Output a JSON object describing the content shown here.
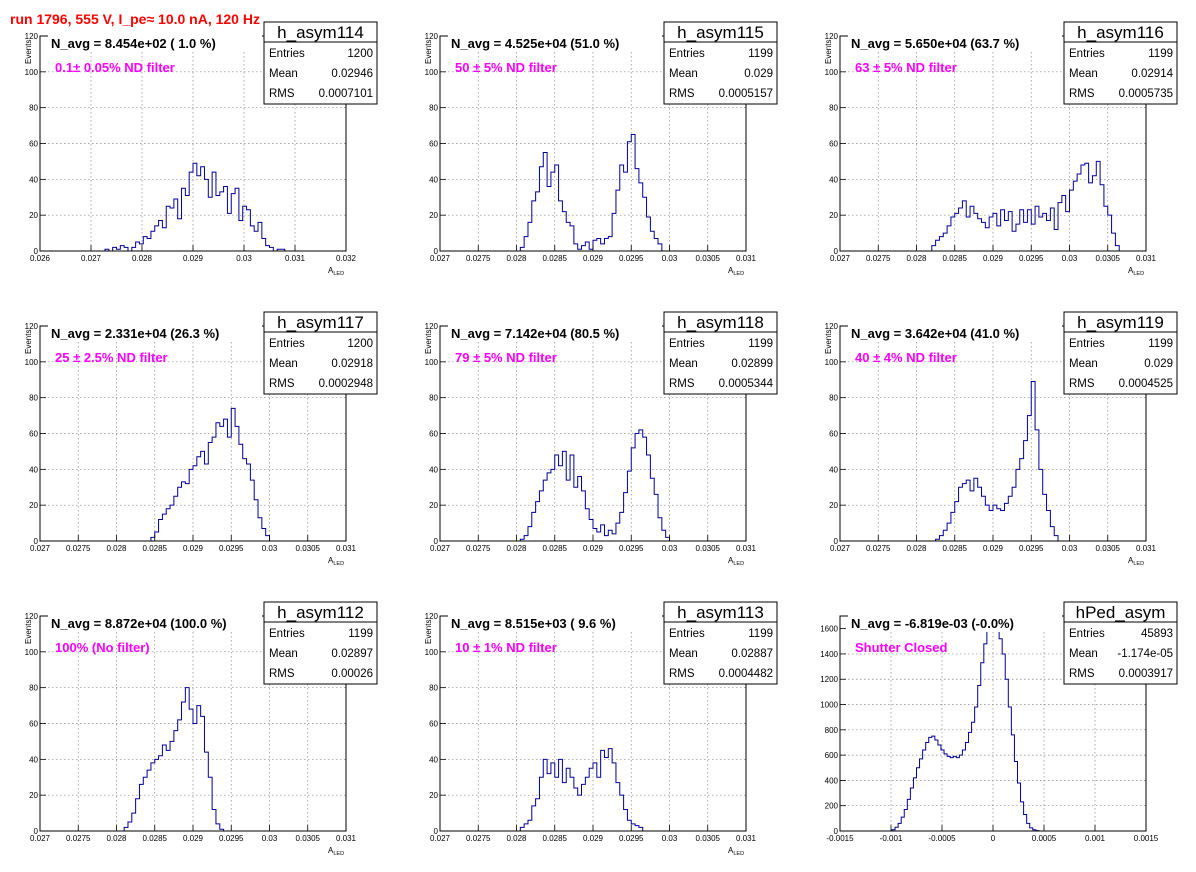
{
  "header": {
    "title": "run 1796,   555 V, I_pe≈ 10.0 nA, 120 Hz"
  },
  "colors": {
    "title": "#ff0000",
    "histogram": "#000099",
    "filter_text": "#ff00ff",
    "grid": "#888888"
  },
  "chart_data": [
    {
      "type": "bar",
      "name": "h_asym114",
      "stats": {
        "entries_label": "Entries",
        "entries": "1200",
        "mean_label": "Mean",
        "mean": "0.02946",
        "rms_label": "RMS",
        "rms": "0.0007101"
      },
      "navg": "N_avg = 8.454e+02 ( 1.0 %)",
      "filter": "0.1± 0.05% ND filter",
      "xlabel": "A",
      "xlabel_sub": "LED",
      "ylabel": "Events",
      "xlim": [
        0.026,
        0.032
      ],
      "ylim": [
        0,
        120
      ],
      "xticks": [
        "0.026",
        "0.027",
        "0.028",
        "0.029",
        "0.03",
        "0.031",
        "0.032"
      ],
      "yticks": [
        "0",
        "20",
        "40",
        "60",
        "80",
        "100",
        "120"
      ],
      "bins": 80,
      "grid": true,
      "values": [
        0,
        0,
        0,
        0,
        0,
        0,
        0,
        0,
        0,
        0,
        0,
        0,
        0,
        0,
        0,
        0,
        0,
        1,
        0,
        2,
        1,
        3,
        2,
        0,
        2,
        5,
        4,
        8,
        7,
        11,
        14,
        17,
        13,
        25,
        24,
        29,
        18,
        35,
        31,
        44,
        49,
        42,
        47,
        40,
        30,
        44,
        31,
        33,
        36,
        21,
        32,
        35,
        17,
        25,
        23,
        14,
        11,
        16,
        7,
        3,
        2,
        0,
        1,
        1,
        0,
        0,
        0,
        0,
        0,
        0,
        0,
        0,
        0,
        0,
        0,
        0,
        0,
        0,
        0,
        0
      ]
    },
    {
      "type": "bar",
      "name": "h_asym115",
      "stats": {
        "entries_label": "Entries",
        "entries": "1199",
        "mean_label": "Mean",
        "mean": "0.029",
        "rms_label": "RMS",
        "rms": "0.0005157"
      },
      "navg": "N_avg = 4.525e+04 (51.0 %)",
      "filter": "50 ± 5% ND filter",
      "xlabel": "A",
      "xlabel_sub": "LED",
      "ylabel": "Events",
      "xlim": [
        0.027,
        0.031
      ],
      "ylim": [
        0,
        120
      ],
      "xticks": [
        "0.027",
        "0.0275",
        "0.028",
        "0.0285",
        "0.029",
        "0.0295",
        "0.03",
        "0.0305",
        "0.031"
      ],
      "yticks": [
        "0",
        "20",
        "40",
        "60",
        "80",
        "100",
        "120"
      ],
      "bins": 80,
      "grid": true,
      "values": [
        0,
        0,
        0,
        0,
        0,
        0,
        0,
        0,
        0,
        0,
        0,
        0,
        0,
        0,
        0,
        0,
        0,
        0,
        0,
        0,
        0,
        2,
        8,
        16,
        28,
        33,
        47,
        55,
        36,
        44,
        48,
        28,
        22,
        16,
        14,
        4,
        1,
        3,
        5,
        1,
        6,
        7,
        4,
        7,
        8,
        21,
        34,
        48,
        44,
        61,
        65,
        46,
        38,
        30,
        19,
        11,
        7,
        4,
        0,
        0,
        0,
        0,
        0,
        0,
        0,
        0,
        0,
        0,
        0,
        0,
        0,
        0,
        0,
        0,
        0,
        0,
        0,
        0,
        0,
        0
      ]
    },
    {
      "type": "bar",
      "name": "h_asym116",
      "stats": {
        "entries_label": "Entries",
        "entries": "1199",
        "mean_label": "Mean",
        "mean": "0.02914",
        "rms_label": "RMS",
        "rms": "0.0005735"
      },
      "navg": "N_avg = 5.650e+04 (63.7 %)",
      "filter": "63 ± 5% ND filter",
      "xlabel": "A",
      "xlabel_sub": "LED",
      "ylabel": "Events",
      "xlim": [
        0.027,
        0.031
      ],
      "ylim": [
        0,
        120
      ],
      "xticks": [
        "0.027",
        "0.0275",
        "0.028",
        "0.0285",
        "0.029",
        "0.0295",
        "0.03",
        "0.0305",
        "0.031"
      ],
      "yticks": [
        "0",
        "20",
        "40",
        "60",
        "80",
        "100",
        "120"
      ],
      "bins": 80,
      "grid": true,
      "values": [
        0,
        0,
        0,
        0,
        0,
        0,
        0,
        0,
        0,
        0,
        0,
        0,
        0,
        0,
        0,
        0,
        0,
        0,
        0,
        0,
        0,
        0,
        0,
        0,
        3,
        6,
        8,
        10,
        14,
        19,
        21,
        24,
        28,
        19,
        25,
        21,
        18,
        16,
        13,
        19,
        21,
        14,
        23,
        17,
        22,
        11,
        15,
        23,
        16,
        23,
        15,
        25,
        19,
        21,
        17,
        24,
        12,
        27,
        31,
        22,
        34,
        39,
        43,
        48,
        49,
        38,
        42,
        50,
        37,
        25,
        20,
        10,
        3,
        0,
        0,
        0,
        0,
        0,
        0,
        0
      ]
    },
    {
      "type": "bar",
      "name": "h_asym117",
      "stats": {
        "entries_label": "Entries",
        "entries": "1200",
        "mean_label": "Mean",
        "mean": "0.02918",
        "rms_label": "RMS",
        "rms": "0.0002948"
      },
      "navg": "N_avg = 2.331e+04 (26.3 %)",
      "filter": "25 ± 2.5% ND filter",
      "xlabel": "A",
      "xlabel_sub": "LED",
      "ylabel": "Events",
      "xlim": [
        0.027,
        0.031
      ],
      "ylim": [
        0,
        120
      ],
      "xticks": [
        "0.027",
        "0.0275",
        "0.028",
        "0.0285",
        "0.029",
        "0.0295",
        "0.03",
        "0.0305",
        "0.031"
      ],
      "yticks": [
        "0",
        "20",
        "40",
        "60",
        "80",
        "100",
        "120"
      ],
      "bins": 80,
      "grid": true,
      "values": [
        0,
        0,
        0,
        0,
        0,
        0,
        0,
        0,
        0,
        0,
        0,
        0,
        0,
        0,
        0,
        0,
        0,
        0,
        0,
        0,
        0,
        0,
        0,
        0,
        0,
        0,
        0,
        0,
        0,
        2,
        5,
        12,
        15,
        18,
        20,
        25,
        30,
        33,
        32,
        40,
        42,
        47,
        50,
        43,
        55,
        58,
        66,
        64,
        68,
        58,
        74,
        64,
        54,
        46,
        43,
        34,
        23,
        13,
        7,
        3,
        0,
        0,
        0,
        0,
        0,
        0,
        0,
        0,
        0,
        0,
        0,
        0,
        0,
        0,
        0,
        0,
        0,
        0,
        0,
        0
      ]
    },
    {
      "type": "bar",
      "name": "h_asym118",
      "stats": {
        "entries_label": "Entries",
        "entries": "1199",
        "mean_label": "Mean",
        "mean": "0.02899",
        "rms_label": "RMS",
        "rms": "0.0005344"
      },
      "navg": "N_avg = 7.142e+04 (80.5 %)",
      "filter": "79 ± 5% ND filter",
      "xlabel": "A",
      "xlabel_sub": "LED",
      "ylabel": "Events",
      "xlim": [
        0.027,
        0.031
      ],
      "ylim": [
        0,
        120
      ],
      "xticks": [
        "0.027",
        "0.0275",
        "0.028",
        "0.0285",
        "0.029",
        "0.0295",
        "0.03",
        "0.0305",
        "0.031"
      ],
      "yticks": [
        "0",
        "20",
        "40",
        "60",
        "80",
        "100",
        "120"
      ],
      "bins": 80,
      "grid": true,
      "values": [
        0,
        0,
        0,
        0,
        0,
        0,
        0,
        0,
        0,
        0,
        0,
        0,
        0,
        0,
        0,
        0,
        0,
        0,
        0,
        0,
        0,
        1,
        3,
        8,
        16,
        22,
        28,
        34,
        38,
        40,
        48,
        42,
        50,
        34,
        48,
        30,
        36,
        28,
        18,
        12,
        7,
        5,
        9,
        3,
        6,
        4,
        10,
        16,
        27,
        39,
        52,
        60,
        62,
        58,
        48,
        35,
        26,
        13,
        6,
        2,
        0,
        0,
        0,
        0,
        0,
        0,
        0,
        0,
        0,
        0,
        0,
        0,
        0,
        0,
        0,
        0,
        0,
        0,
        0,
        0
      ]
    },
    {
      "type": "bar",
      "name": "h_asym119",
      "stats": {
        "entries_label": "Entries",
        "entries": "1199",
        "mean_label": "Mean",
        "mean": "0.029",
        "rms_label": "RMS",
        "rms": "0.0004525"
      },
      "navg": "N_avg = 3.642e+04 (41.0 %)",
      "filter": "40 ± 4% ND filter",
      "xlabel": "A",
      "xlabel_sub": "LED",
      "ylabel": "Events",
      "xlim": [
        0.027,
        0.031
      ],
      "ylim": [
        0,
        120
      ],
      "xticks": [
        "0.027",
        "0.0275",
        "0.028",
        "0.0285",
        "0.029",
        "0.0295",
        "0.03",
        "0.0305",
        "0.031"
      ],
      "yticks": [
        "0",
        "20",
        "40",
        "60",
        "80",
        "100",
        "120"
      ],
      "bins": 80,
      "grid": true,
      "values": [
        0,
        0,
        0,
        0,
        0,
        0,
        0,
        0,
        0,
        0,
        0,
        0,
        0,
        0,
        0,
        0,
        0,
        0,
        0,
        0,
        0,
        0,
        0,
        0,
        0,
        1,
        3,
        6,
        10,
        16,
        22,
        30,
        32,
        34,
        28,
        35,
        30,
        25,
        20,
        17,
        20,
        18,
        17,
        21,
        25,
        30,
        40,
        46,
        56,
        70,
        89,
        62,
        40,
        26,
        17,
        8,
        3,
        0,
        0,
        0,
        0,
        0,
        0,
        0,
        0,
        0,
        0,
        0,
        0,
        0,
        0,
        0,
        0,
        0,
        0,
        0,
        0,
        0,
        0,
        0
      ]
    },
    {
      "type": "bar",
      "name": "h_asym112",
      "stats": {
        "entries_label": "Entries",
        "entries": "1199",
        "mean_label": "Mean",
        "mean": "0.02897",
        "rms_label": "RMS",
        "rms": "0.00026"
      },
      "navg": "N_avg = 8.872e+04 (100.0 %)",
      "filter": "100% (No filter)",
      "xlabel": "A",
      "xlabel_sub": "LED",
      "ylabel": "Events",
      "xlim": [
        0.027,
        0.031
      ],
      "ylim": [
        0,
        120
      ],
      "xticks": [
        "0.027",
        "0.0275",
        "0.028",
        "0.0285",
        "0.029",
        "0.0295",
        "0.03",
        "0.0305",
        "0.031"
      ],
      "yticks": [
        "0",
        "20",
        "40",
        "60",
        "80",
        "100",
        "120"
      ],
      "bins": 80,
      "grid": true,
      "values": [
        0,
        0,
        0,
        0,
        0,
        0,
        0,
        0,
        0,
        0,
        0,
        0,
        0,
        0,
        0,
        0,
        0,
        0,
        0,
        0,
        0,
        0,
        2,
        5,
        10,
        18,
        26,
        30,
        34,
        38,
        40,
        42,
        48,
        45,
        50,
        56,
        62,
        72,
        80,
        68,
        60,
        70,
        64,
        44,
        30,
        12,
        4,
        1,
        0,
        0,
        0,
        0,
        0,
        0,
        0,
        0,
        0,
        0,
        0,
        0,
        0,
        0,
        0,
        0,
        0,
        0,
        0,
        0,
        0,
        0,
        0,
        0,
        0,
        0,
        0,
        0,
        0,
        0,
        0,
        0
      ]
    },
    {
      "type": "bar",
      "name": "h_asym113",
      "stats": {
        "entries_label": "Entries",
        "entries": "1199",
        "mean_label": "Mean",
        "mean": "0.02887",
        "rms_label": "RMS",
        "rms": "0.0004482"
      },
      "navg": "N_avg = 8.515e+03 ( 9.6 %)",
      "filter": "10 ± 1% ND filter",
      "xlabel": "A",
      "xlabel_sub": "LED",
      "ylabel": "Events",
      "xlim": [
        0.027,
        0.031
      ],
      "ylim": [
        0,
        120
      ],
      "xticks": [
        "0.027",
        "0.0275",
        "0.028",
        "0.0285",
        "0.029",
        "0.0295",
        "0.03",
        "0.0305",
        "0.031"
      ],
      "yticks": [
        "0",
        "20",
        "40",
        "60",
        "80",
        "100",
        "120"
      ],
      "bins": 80,
      "grid": true,
      "values": [
        0,
        0,
        0,
        0,
        0,
        0,
        0,
        0,
        0,
        0,
        0,
        0,
        0,
        0,
        0,
        0,
        0,
        0,
        0,
        0,
        0,
        2,
        4,
        6,
        14,
        18,
        30,
        40,
        32,
        38,
        30,
        40,
        27,
        35,
        30,
        24,
        20,
        26,
        30,
        35,
        38,
        30,
        45,
        41,
        46,
        38,
        27,
        20,
        12,
        6,
        4,
        3,
        2,
        0,
        0,
        0,
        0,
        0,
        0,
        0,
        0,
        0,
        0,
        0,
        0,
        0,
        0,
        0,
        0,
        0,
        0,
        0,
        0,
        0,
        0,
        0,
        0,
        0,
        0,
        0
      ]
    },
    {
      "type": "bar",
      "name": "hPed_asym",
      "stats": {
        "entries_label": "Entries",
        "entries": "45893",
        "mean_label": "Mean",
        "mean": "-1.174e-05",
        "rms_label": "RMS",
        "rms": "0.0003917"
      },
      "navg": "N_avg = -6.819e-03 (-0.0%)",
      "filter": "Shutter Closed",
      "xlabel": "",
      "xlabel_sub": "",
      "ylabel": "",
      "xlim": [
        -0.0015,
        0.0015
      ],
      "ylim": [
        0,
        1700
      ],
      "xticks": [
        "-0.0015",
        "-0.001",
        "-0.0005",
        "0",
        "0.0005",
        "0.001",
        "0.0015"
      ],
      "yticks": [
        "0",
        "200",
        "400",
        "600",
        "800",
        "1000",
        "1200",
        "1400",
        "1600"
      ],
      "bins": 100,
      "grid": true,
      "values": [
        0,
        0,
        0,
        0,
        0,
        0,
        0,
        0,
        0,
        0,
        0,
        0,
        0,
        0,
        0,
        0,
        0,
        10,
        30,
        60,
        110,
        170,
        250,
        340,
        420,
        500,
        570,
        640,
        700,
        740,
        750,
        720,
        680,
        640,
        610,
        590,
        580,
        590,
        580,
        600,
        640,
        700,
        780,
        860,
        980,
        1150,
        1330,
        1480,
        1580,
        1620,
        1630,
        1580,
        1520,
        1400,
        1200,
        980,
        760,
        550,
        380,
        230,
        130,
        60,
        25,
        10,
        3,
        0,
        0,
        0,
        0,
        0,
        0,
        0,
        0,
        0,
        0,
        0,
        0,
        0,
        0,
        0,
        0,
        0,
        0,
        0,
        0,
        0,
        0,
        0,
        0,
        0,
        0,
        0,
        0,
        0,
        0,
        0,
        0,
        0,
        0,
        0
      ]
    }
  ]
}
